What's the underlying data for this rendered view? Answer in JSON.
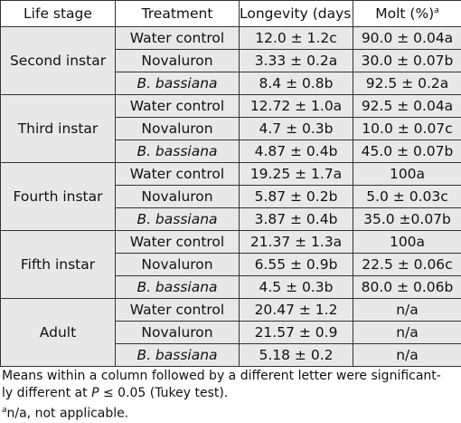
{
  "table": {
    "headers": {
      "life_stage": "Life stage",
      "treatment": "Treatment",
      "longevity": "Longevity (days)",
      "molt": "Molt (%)",
      "molt_footnote_marker": "a"
    },
    "groups": [
      {
        "stage": "Second instar",
        "rows": [
          {
            "treatment": "Water control",
            "longevity": "12.0 ± 1.2c",
            "molt": "90.0 ± 0.04a"
          },
          {
            "treatment": "Novaluron",
            "longevity": "3.33 ± 0.2a",
            "molt": "30.0 ± 0.07b"
          },
          {
            "treatment": "B. bassiana",
            "longevity": "8.4 ± 0.8b",
            "molt": "92.5 ± 0.2a"
          }
        ]
      },
      {
        "stage": "Third instar",
        "rows": [
          {
            "treatment": "Water control",
            "longevity": "12.72 ± 1.0a",
            "molt": "92.5 ± 0.04a"
          },
          {
            "treatment": "Novaluron",
            "longevity": "4.7 ± 0.3b",
            "molt": "10.0 ± 0.07c"
          },
          {
            "treatment": "B. bassiana",
            "longevity": "4.87 ± 0.4b",
            "molt": "45.0 ± 0.07b"
          }
        ]
      },
      {
        "stage": "Fourth instar",
        "rows": [
          {
            "treatment": "Water control",
            "longevity": "19.25 ± 1.7a",
            "molt": "100a"
          },
          {
            "treatment": "Novaluron",
            "longevity": "5.87 ± 0.2b",
            "molt": "5.0 ± 0.03c"
          },
          {
            "treatment": "B. bassiana",
            "longevity": "3.87 ± 0.4b",
            "molt": "35.0 ±0.07b"
          }
        ]
      },
      {
        "stage": "Fifth instar",
        "rows": [
          {
            "treatment": "Water control",
            "longevity": "21.37 ± 1.3a",
            "molt": "100a"
          },
          {
            "treatment": "Novaluron",
            "longevity": "6.55 ± 0.9b",
            "molt": "22.5 ± 0.06c"
          },
          {
            "treatment": "B. bassiana",
            "longevity": "4.5 ± 0.3b",
            "molt": "80.0 ± 0.06b"
          }
        ]
      },
      {
        "stage": "Adult",
        "rows": [
          {
            "treatment": "Water control",
            "longevity": "20.47 ± 1.2",
            "molt": "n/a"
          },
          {
            "treatment": "Novaluron",
            "longevity": "21.57 ± 0.9",
            "molt": "n/a"
          },
          {
            "treatment": "B. bassiana",
            "longevity": "5.18 ± 0.2",
            "molt": "n/a"
          }
        ]
      }
    ]
  },
  "notes": {
    "means_line_1": "Means within a column followed by a different letter were significant-",
    "means_line_2_pre": "ly different at ",
    "means_line_2_var": "P",
    "means_line_2_post": " ≤ 0.05 (Tukey test).",
    "footnote_marker": "a",
    "footnote_text": "n/a, not applicable."
  },
  "italic_treatment": "B. bassiana"
}
